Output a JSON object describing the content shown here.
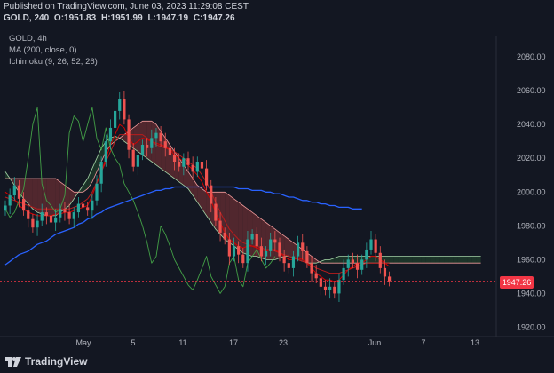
{
  "header": {
    "published": "Published on TradingView.com, June 03, 2023 11:29:08 CEST",
    "symbol": "GOLD, 240",
    "ohlc": {
      "open": "O:1951.83",
      "high": "H:1951.99",
      "low": "L:1947.19",
      "close": "C:1947.26"
    }
  },
  "legend": {
    "title": "GOLD, 4h",
    "ma": "MA (200, close, 0)",
    "ichimoku": "Ichimoku (9, 26, 52, 26)"
  },
  "logo_text": "TradingView",
  "current_price_label": "1947.26",
  "colors": {
    "background": "#131722",
    "up": "#26a69a",
    "down": "#ef5350",
    "ma": "#2962ff",
    "tenkan": "#d50000",
    "kijun": "#b71c1c",
    "chikou": "#43a047",
    "senkou_a": "#a5d6a7",
    "senkou_b": "#ef9a9a",
    "cloud_bear": "#5d2a30",
    "cloud_bull": "#1e3a2a",
    "price_line": "#f23645"
  },
  "chart_data": {
    "type": "line",
    "title": "GOLD, 4h",
    "xlabel": "",
    "ylabel": "",
    "ylim": [
      1915,
      2090
    ],
    "y_ticks": [
      1920,
      1940,
      1960,
      1980,
      2000,
      2020,
      2040,
      2060,
      2080
    ],
    "y_tick_labels": [
      "1920.00",
      "1940.00",
      "1960.00",
      "1980.00",
      "2000.00",
      "2020.00",
      "2040.00",
      "2060.00",
      "2080.00"
    ],
    "x_tick_labels": [
      "May",
      "5",
      "11",
      "17",
      "23",
      "Jun",
      "7",
      "13"
    ],
    "grid": false,
    "last_price": 1947.26,
    "series": [
      {
        "name": "GOLD, 4h",
        "style": "candles",
        "values": [
          1992,
          1998,
          2004,
          1996,
          1989,
          1984,
          1979,
          1983,
          1988,
          1986,
          1982,
          1985,
          1990,
          1988,
          1984,
          1988,
          1993,
          1991,
          1989,
          1995,
          2005,
          2018,
          2030,
          2038,
          2048,
          2055,
          2043,
          2025,
          2015,
          2022,
          2028,
          2026,
          2032,
          2035,
          2030,
          2026,
          2022,
          2018,
          2015,
          2020,
          2016,
          2012,
          2018,
          2014,
          2004,
          1993,
          1983,
          1976,
          1972,
          1962,
          1968,
          1963,
          1958,
          1972,
          1975,
          1968,
          1962,
          1965,
          1972,
          1970,
          1962,
          1958,
          1955,
          1962,
          1970,
          1965,
          1958,
          1952,
          1949,
          1944,
          1942,
          1944,
          1940,
          1948,
          1955,
          1960,
          1958,
          1954,
          1960,
          1966,
          1972,
          1964,
          1955,
          1950,
          1947.26
        ]
      },
      {
        "name": "MA (200, close, 0)",
        "values": [
          1957,
          1959,
          1961,
          1963,
          1964,
          1965,
          1967,
          1969,
          1970,
          1971,
          1973,
          1975,
          1976,
          1977,
          1978,
          1979,
          1981,
          1982,
          1984,
          1985,
          1987,
          1988,
          1990,
          1991,
          1992,
          1993,
          1994,
          1995,
          1996,
          1997,
          1998,
          1999,
          2000,
          2001,
          2001,
          2002,
          2002,
          2003,
          2003,
          2003,
          2003,
          2003,
          2003,
          2003,
          2003,
          2003,
          2003,
          2003,
          2003,
          2003,
          2003,
          2002,
          2002,
          2002,
          2001,
          2001,
          2001,
          2000,
          2000,
          1999,
          1999,
          1998,
          1997,
          1997,
          1996,
          1995,
          1995,
          1994,
          1994,
          1993,
          1993,
          1992,
          1992,
          1991,
          1991,
          1991,
          1990,
          1990,
          1990
        ]
      },
      {
        "name": "Tenkan",
        "values": [
          2000,
          1998,
          1996,
          1992,
          1990,
          1988,
          1987,
          1986,
          1986,
          1986,
          1986,
          1987,
          1987,
          1988,
          1988,
          1989,
          1990,
          1991,
          1992,
          1998,
          2005,
          2012,
          2020,
          2028,
          2034,
          2040,
          2038,
          2032,
          2028,
          2030,
          2032,
          2031,
          2030,
          2029,
          2028,
          2027,
          2025,
          2022,
          2020,
          2018,
          2016,
          2013,
          2010,
          2006,
          2000,
          1995,
          1988,
          1982,
          1976,
          1972,
          1970,
          1968,
          1967,
          1968,
          1968,
          1967,
          1966,
          1965,
          1966,
          1966,
          1964,
          1962,
          1960,
          1960,
          1961,
          1960,
          1958,
          1955,
          1952,
          1950,
          1948,
          1948,
          1947,
          1948,
          1951,
          1954,
          1956,
          1958,
          1958,
          1960,
          1962,
          1962,
          1960,
          1958,
          1956
        ]
      },
      {
        "name": "Kijun",
        "values": [
          1997,
          1996,
          1995,
          1994,
          1993,
          1992,
          1991,
          1990,
          1990,
          1990,
          1990,
          1990,
          1990,
          1990,
          1990,
          1991,
          1992,
          1994,
          1996,
          2000,
          2006,
          2012,
          2018,
          2024,
          2030,
          2034,
          2034,
          2034,
          2034,
          2034,
          2034,
          2032,
          2030,
          2028,
          2027,
          2026,
          2025,
          2024,
          2022,
          2020,
          2018,
          2016,
          2014,
          2010,
          2006,
          2000,
          1994,
          1988,
          1983,
          1978,
          1975,
          1972,
          1970,
          1969,
          1968,
          1968,
          1967,
          1966,
          1966,
          1965,
          1964,
          1963,
          1962,
          1961,
          1960,
          1959,
          1958,
          1957,
          1955,
          1954,
          1953,
          1952,
          1952,
          1952,
          1953,
          1954,
          1955,
          1956,
          1957,
          1958,
          1958,
          1958,
          1958,
          1958,
          1958
        ]
      },
      {
        "name": "Chikou",
        "values": [
          1990,
          1985,
          1988,
          1995,
          2002,
          2020,
          2040,
          2050,
          2005,
          1995,
          1992,
          1988,
          1990,
          1998,
          2035,
          2045,
          2042,
          2030,
          2040,
          2050,
          2032,
          2025,
          2038,
          2026,
          2020,
          2016,
          2005,
          2000,
          1995,
          1988,
          1980,
          1970,
          1958,
          1962,
          1980,
          1975,
          1968,
          1960,
          1955,
          1950,
          1945,
          1942,
          1948,
          1955,
          1962,
          1950,
          1945,
          1940,
          1944,
          1958,
          1962,
          1948,
          1944,
          1958,
          1962,
          1966,
          1960,
          1955,
          1958,
          1962
        ]
      },
      {
        "name": "Senkou A",
        "values": [
          2012,
          2008,
          2004,
          2000,
          1996,
          1993,
          1990,
          1988,
          1987,
          1986,
          1986,
          1986,
          1988,
          1990,
          1992,
          1996,
          2000,
          2004,
          2008,
          2014,
          2020,
          2026,
          2030,
          2032,
          2033,
          2032,
          2030,
          2028,
          2026,
          2024,
          2022,
          2020,
          2018,
          2016,
          2014,
          2012,
          2010,
          2008,
          2006,
          2004,
          2002,
          1998,
          1994,
          1990,
          1986,
          1982,
          1978,
          1975,
          1972,
          1970,
          1968,
          1966,
          1964,
          1963,
          1962,
          1962,
          1961,
          1960,
          1960,
          1960,
          1961,
          1962,
          1962,
          1961,
          1960,
          1959,
          1958,
          1958,
          1958,
          1959,
          1960,
          1960,
          1961,
          1962,
          1962,
          1962,
          1962,
          1962,
          1962,
          1962,
          1962,
          1962,
          1962,
          1962,
          1962,
          1962,
          1962,
          1962,
          1962,
          1962,
          1962,
          1962,
          1962,
          1962,
          1962,
          1962,
          1962,
          1962,
          1962,
          1962,
          1962,
          1962,
          1962,
          1962,
          1962
        ]
      },
      {
        "name": "Senkou B",
        "values": [
          2008,
          2008,
          2008,
          2008,
          2008,
          2008,
          2008,
          2008,
          2008,
          2008,
          2008,
          2008,
          2006,
          2004,
          2002,
          2000,
          2000,
          2000,
          2002,
          2006,
          2012,
          2018,
          2024,
          2028,
          2030,
          2032,
          2034,
          2036,
          2038,
          2040,
          2042,
          2042,
          2042,
          2040,
          2036,
          2032,
          2028,
          2024,
          2020,
          2016,
          2012,
          2008,
          2004,
          2002,
          2000,
          2000,
          2000,
          2000,
          2000,
          1998,
          1996,
          1994,
          1992,
          1990,
          1988,
          1986,
          1984,
          1982,
          1980,
          1978,
          1976,
          1974,
          1972,
          1970,
          1968,
          1966,
          1964,
          1962,
          1960,
          1958,
          1958,
          1958,
          1958,
          1958,
          1958,
          1958,
          1958,
          1958,
          1958,
          1958,
          1958,
          1958,
          1958,
          1958,
          1958,
          1958,
          1958,
          1958,
          1958,
          1958,
          1958,
          1958,
          1958,
          1958,
          1958,
          1958,
          1958,
          1958,
          1958,
          1958,
          1958,
          1958,
          1958,
          1958,
          1958
        ]
      }
    ]
  }
}
